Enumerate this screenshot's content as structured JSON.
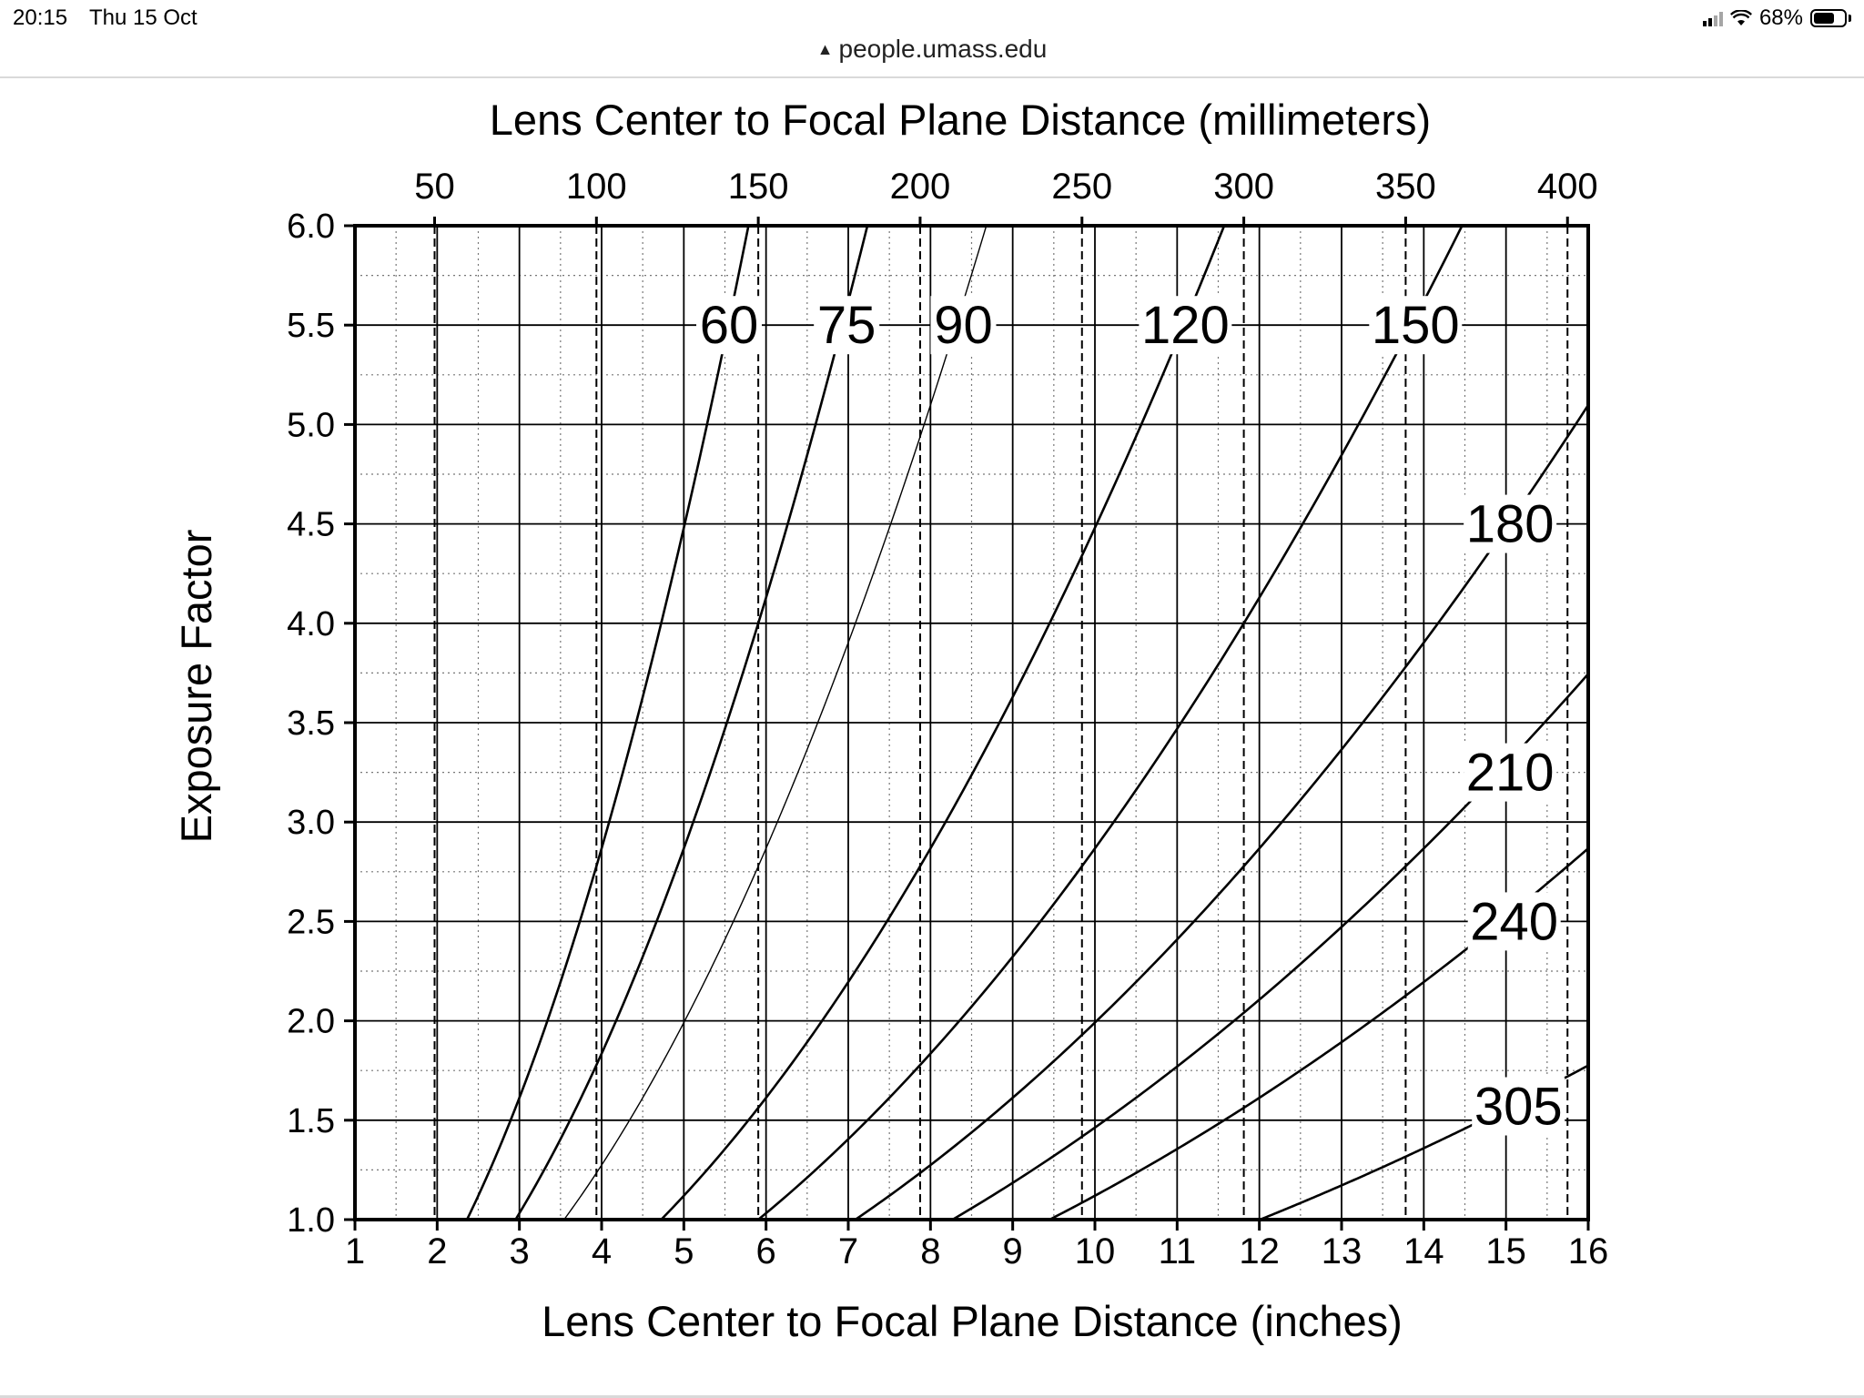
{
  "status_bar": {
    "time": "20:15",
    "date": "Thu 15 Oct",
    "battery": "68%",
    "battery_level": 0.68
  },
  "browser": {
    "url": "people.umass.edu",
    "lock_icon": "lock-icon"
  },
  "chart_data": {
    "type": "line",
    "title": "Lens Center to Focal Plane Distance (millimeters)",
    "xlabel": "Lens Center to Focal Plane Distance (inches)",
    "ylabel": "Exposure Factor",
    "xlim": [
      1,
      16
    ],
    "ylim": [
      1.0,
      6.0
    ],
    "x_ticks": [
      "1",
      "2",
      "3",
      "4",
      "5",
      "6",
      "7",
      "8",
      "9",
      "10",
      "11",
      "12",
      "13",
      "14",
      "15",
      "16"
    ],
    "y_ticks": [
      "1.0",
      "1.5",
      "2.0",
      "2.5",
      "3.0",
      "3.5",
      "4.0",
      "4.5",
      "5.0",
      "5.5",
      "6.0"
    ],
    "top_axis_ticks_mm": [
      "50",
      "100",
      "150",
      "200",
      "250",
      "300",
      "350",
      "400"
    ],
    "grid": true,
    "series": [
      {
        "name": "60",
        "focal_mm": 60,
        "label_at": [
          5.55,
          5.5
        ]
      },
      {
        "name": "75",
        "focal_mm": 75,
        "label_at": [
          6.98,
          5.5
        ]
      },
      {
        "name": "90",
        "focal_mm": 90,
        "label_at": [
          8.4,
          5.5
        ]
      },
      {
        "name": "120",
        "focal_mm": 120,
        "label_at": [
          11.1,
          5.5
        ]
      },
      {
        "name": "150",
        "focal_mm": 150,
        "label_at": [
          13.9,
          5.5
        ]
      },
      {
        "name": "180",
        "focal_mm": 180,
        "label_at": [
          15.05,
          4.5
        ]
      },
      {
        "name": "210",
        "focal_mm": 210,
        "label_at": [
          15.05,
          3.25
        ]
      },
      {
        "name": "240",
        "focal_mm": 240,
        "label_at": [
          15.1,
          2.5
        ]
      },
      {
        "name": "305",
        "focal_mm": 305,
        "label_at": [
          15.15,
          1.57
        ]
      }
    ]
  }
}
